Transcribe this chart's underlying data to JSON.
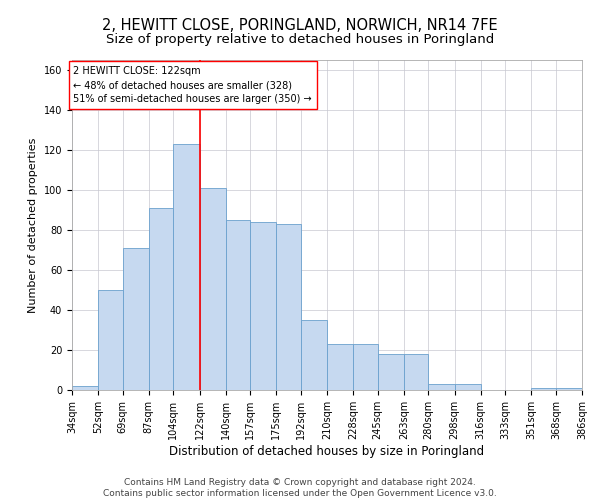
{
  "title": "2, HEWITT CLOSE, PORINGLAND, NORWICH, NR14 7FE",
  "subtitle": "Size of property relative to detached houses in Poringland",
  "xlabel": "Distribution of detached houses by size in Poringland",
  "ylabel": "Number of detached properties",
  "bar_color": "#c6d9f0",
  "bar_edge_color": "#6aa0cd",
  "grid_color": "#c8c8d0",
  "background_color": "#ffffff",
  "vline_x": 122,
  "vline_color": "red",
  "annotation_text": "2 HEWITT CLOSE: 122sqm\n← 48% of detached houses are smaller (328)\n51% of semi-detached houses are larger (350) →",
  "bin_edges": [
    34,
    52,
    69,
    87,
    104,
    122,
    140,
    157,
    175,
    192,
    210,
    228,
    245,
    263,
    280,
    298,
    316,
    333,
    351,
    368,
    386
  ],
  "bar_heights": [
    2,
    50,
    71,
    91,
    123,
    101,
    85,
    84,
    83,
    35,
    23,
    23,
    18,
    18,
    3,
    3,
    0,
    0,
    1,
    1
  ],
  "ylim": [
    0,
    165
  ],
  "yticks": [
    0,
    20,
    40,
    60,
    80,
    100,
    120,
    140,
    160
  ],
  "footer_text": "Contains HM Land Registry data © Crown copyright and database right 2024.\nContains public sector information licensed under the Open Government Licence v3.0.",
  "title_fontsize": 10.5,
  "subtitle_fontsize": 9.5,
  "xlabel_fontsize": 8.5,
  "ylabel_fontsize": 8,
  "tick_fontsize": 7,
  "footer_fontsize": 6.5,
  "annotation_fontsize": 7
}
